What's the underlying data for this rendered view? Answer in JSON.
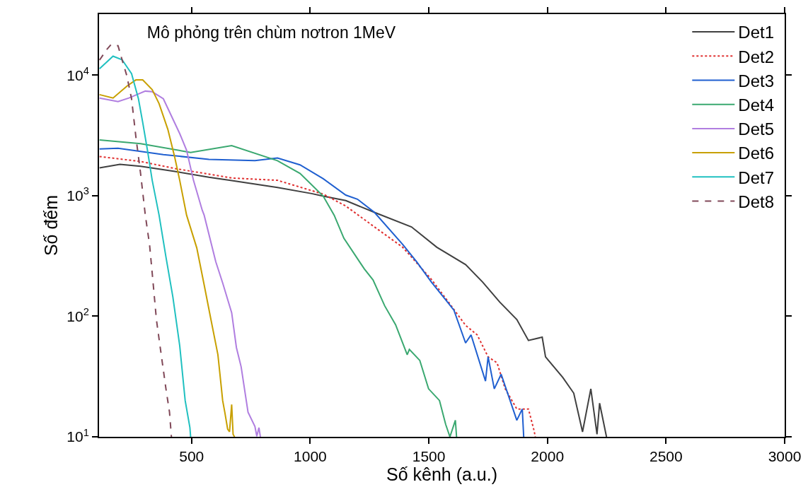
{
  "chart_data": {
    "type": "line",
    "title": "Mô phỏng trên chùm nơtron 1MeV",
    "xlabel": "Số kênh (a.u.)",
    "ylabel": "Số đếm",
    "log": "y",
    "legend": "top right",
    "xlim": [
      110,
      3000
    ],
    "xticks": [
      500,
      1000,
      1500,
      2000,
      2500,
      3000
    ],
    "ylim": [
      10,
      32000
    ],
    "yticks": [
      {
        "value": 10,
        "label": "10$^{1}$"
      },
      {
        "value": 100,
        "label": "10$^{2}$"
      },
      {
        "value": 1000,
        "label": "10$^{3}$"
      },
      {
        "value": 10000,
        "label": "10$^{4}$"
      }
    ],
    "series": [
      {
        "name": "Det1",
        "color": "#404040",
        "line_style": "solid",
        "x": [
          112,
          198,
          285,
          429,
          573,
          660,
          862,
          1006,
          1055,
          1150,
          1271,
          1427,
          1534,
          1655,
          1727,
          1799,
          1871,
          1920,
          1978,
          1992,
          2065,
          2111,
          2148,
          2183,
          2209,
          2220,
          2249
        ],
        "values": [
          1700,
          1820,
          1750,
          1590,
          1420,
          1340,
          1170,
          1040,
          990,
          910,
          726,
          550,
          373,
          268,
          192,
          131,
          94,
          63,
          67,
          46,
          31,
          23,
          11,
          25,
          10.5,
          19,
          10
        ]
      },
      {
        "name": "Det2",
        "color": "#e03030",
        "line_style": "dotted",
        "x": [
          112,
          285,
          429,
          669,
          862,
          1055,
          1150,
          1271,
          1390,
          1511,
          1583,
          1655,
          1704,
          1750,
          1788,
          1822,
          1871,
          1920,
          1943,
          1949
        ],
        "values": [
          2110,
          1920,
          1680,
          1400,
          1340,
          1030,
          820,
          550,
          373,
          202,
          131,
          84,
          70,
          46,
          41,
          25,
          17,
          17,
          11.4,
          10
        ]
      },
      {
        "name": "Det3",
        "color": "#1f5fd0",
        "line_style": "solid",
        "x": [
          112,
          190,
          381,
          573,
          767,
          862,
          957,
          1055,
          1150,
          1199,
          1271,
          1390,
          1450,
          1511,
          1571,
          1606,
          1655,
          1678,
          1739,
          1750,
          1776,
          1805,
          1871,
          1894,
          1900
        ],
        "values": [
          2440,
          2470,
          2190,
          2000,
          1950,
          2050,
          1800,
          1380,
          1010,
          935,
          726,
          394,
          281,
          192,
          137,
          112,
          60,
          70,
          29,
          46,
          25,
          33,
          13.7,
          17,
          10
        ]
      },
      {
        "name": "Det4",
        "color": "#3aa870",
        "line_style": "solid",
        "x": [
          112,
          285,
          496,
          669,
          862,
          957,
          1055,
          1101,
          1142,
          1228,
          1265,
          1314,
          1360,
          1409,
          1418,
          1462,
          1499,
          1545,
          1571,
          1589,
          1612,
          1617
        ],
        "values": [
          2900,
          2700,
          2280,
          2600,
          1950,
          1530,
          990,
          689,
          443,
          247,
          200,
          122,
          85,
          48,
          53,
          43,
          25,
          20,
          12.7,
          10,
          13.7,
          10
        ]
      },
      {
        "name": "Det5",
        "color": "#b07ee0",
        "line_style": "solid",
        "x": [
          112,
          190,
          236,
          305,
          334,
          381,
          450,
          479,
          508,
          545,
          553,
          602,
          631,
          669,
          689,
          709,
          738,
          767,
          775,
          784,
          790
        ],
        "values": [
          6450,
          6030,
          6450,
          7360,
          7270,
          6360,
          3270,
          2380,
          1340,
          757,
          689,
          283,
          189,
          107,
          55,
          38,
          16,
          12.2,
          10.1,
          11.9,
          10
        ]
      },
      {
        "name": "Det6",
        "color": "#c8a000",
        "line_style": "solid",
        "x": [
          112,
          169,
          227,
          265,
          294,
          334,
          363,
          400,
          429,
          450,
          479,
          522,
          553,
          582,
          611,
          626,
          631,
          640,
          652,
          660,
          669,
          675,
          681
        ],
        "values": [
          6880,
          6450,
          8080,
          9110,
          9110,
          7570,
          5790,
          3540,
          2080,
          1340,
          689,
          368,
          182,
          93,
          48,
          25,
          20,
          16,
          11.6,
          11,
          18.5,
          10.5,
          10
        ]
      },
      {
        "name": "Det7",
        "color": "#20c0c0",
        "line_style": "solid",
        "x": [
          112,
          169,
          207,
          247,
          276,
          294,
          314,
          334,
          363,
          392,
          421,
          450,
          473,
          493,
          496
        ],
        "values": [
          11270,
          14330,
          13400,
          10270,
          6360,
          4050,
          2380,
          1340,
          689,
          310,
          145,
          57,
          20,
          11.9,
          10
        ]
      },
      {
        "name": "Det8",
        "color": "#804858",
        "line_style": "dashed",
        "x": [
          112,
          141,
          161,
          190,
          207,
          227,
          247,
          265,
          285,
          305,
          323,
          334,
          352,
          372,
          392,
          407,
          415
        ],
        "values": [
          13300,
          16140,
          17950,
          17500,
          13400,
          9870,
          6360,
          3100,
          1530,
          689,
          390,
          228,
          93,
          48,
          25,
          16,
          10
        ]
      }
    ]
  }
}
